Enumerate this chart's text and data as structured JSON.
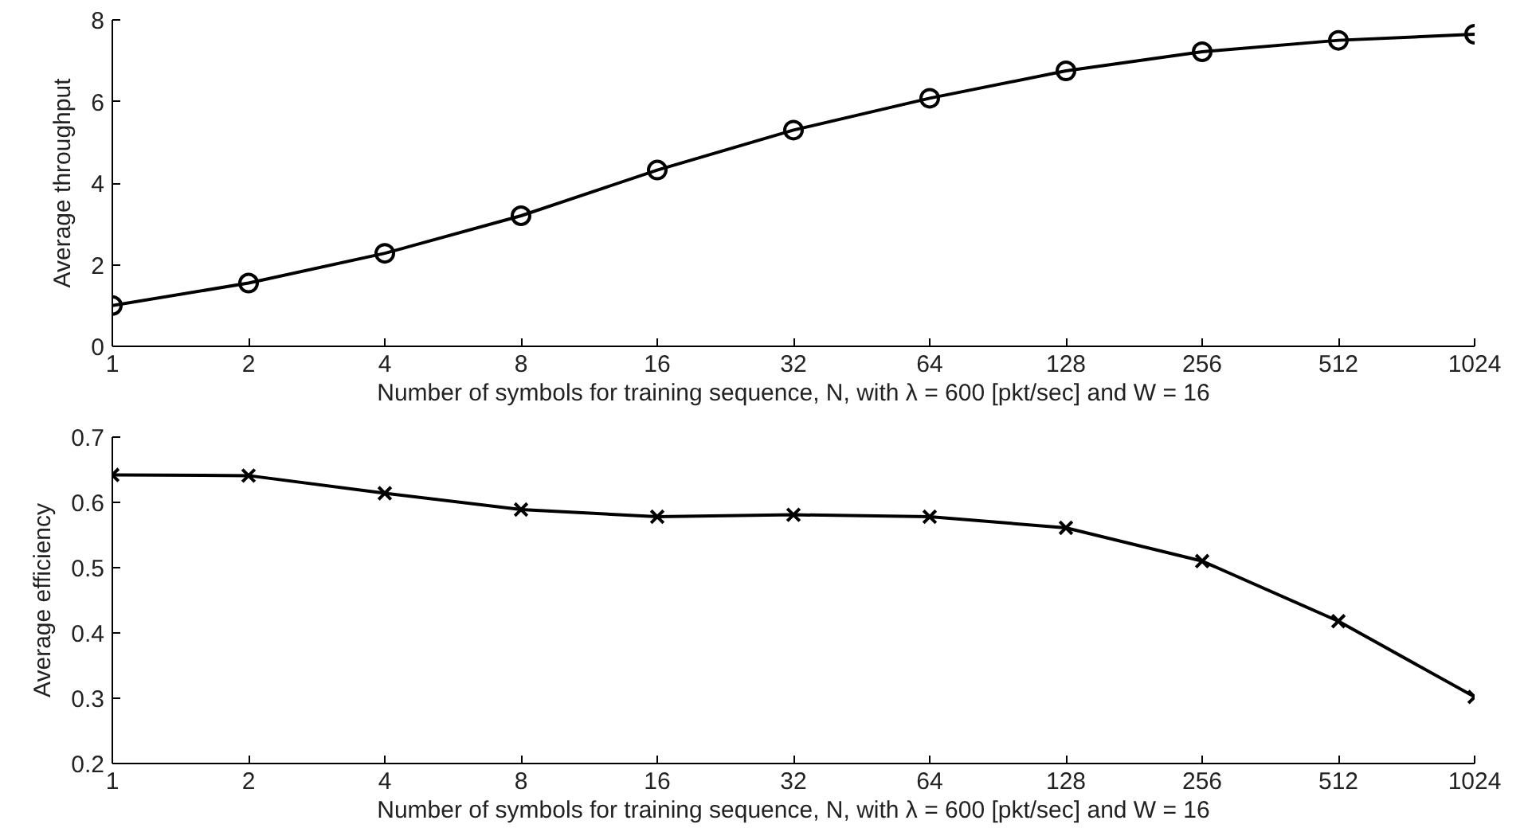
{
  "chart_data": [
    {
      "type": "line",
      "xlabel": "Number of symbols for training sequence, N, with λ = 600 [pkt/sec] and W = 16",
      "ylabel": "Average throughput",
      "x": [
        1,
        2,
        4,
        8,
        16,
        32,
        64,
        128,
        256,
        512,
        1024
      ],
      "log": "x",
      "xlim": [
        1,
        1024
      ],
      "xticks": [
        1,
        2,
        4,
        8,
        16,
        32,
        64,
        128,
        256,
        512,
        1024
      ],
      "ylim": [
        0,
        8
      ],
      "yticks": [
        0,
        2,
        4,
        6,
        8
      ],
      "marker": "circle",
      "line_style": "solid",
      "grid": false,
      "series": [
        {
          "color": "#000000",
          "values": [
            1.0,
            1.55,
            2.28,
            3.2,
            4.32,
            5.3,
            6.08,
            6.75,
            7.22,
            7.5,
            7.65
          ]
        }
      ]
    },
    {
      "type": "line",
      "xlabel": "Number of symbols for training sequence, N, with λ = 600 [pkt/sec] and W = 16",
      "ylabel": "Average efficiency",
      "x": [
        1,
        2,
        4,
        8,
        16,
        32,
        64,
        128,
        256,
        512,
        1024
      ],
      "log": "x",
      "xlim": [
        1,
        1024
      ],
      "xticks": [
        1,
        2,
        4,
        8,
        16,
        32,
        64,
        128,
        256,
        512,
        1024
      ],
      "ylim": [
        0.2,
        0.7
      ],
      "yticks": [
        0.2,
        0.3,
        0.4,
        0.5,
        0.6,
        0.7
      ],
      "marker": "cross",
      "line_style": "solid",
      "grid": false,
      "series": [
        {
          "color": "#000000",
          "values": [
            0.642,
            0.641,
            0.614,
            0.589,
            0.578,
            0.581,
            0.578,
            0.561,
            0.51,
            0.418,
            0.302
          ]
        }
      ]
    }
  ]
}
